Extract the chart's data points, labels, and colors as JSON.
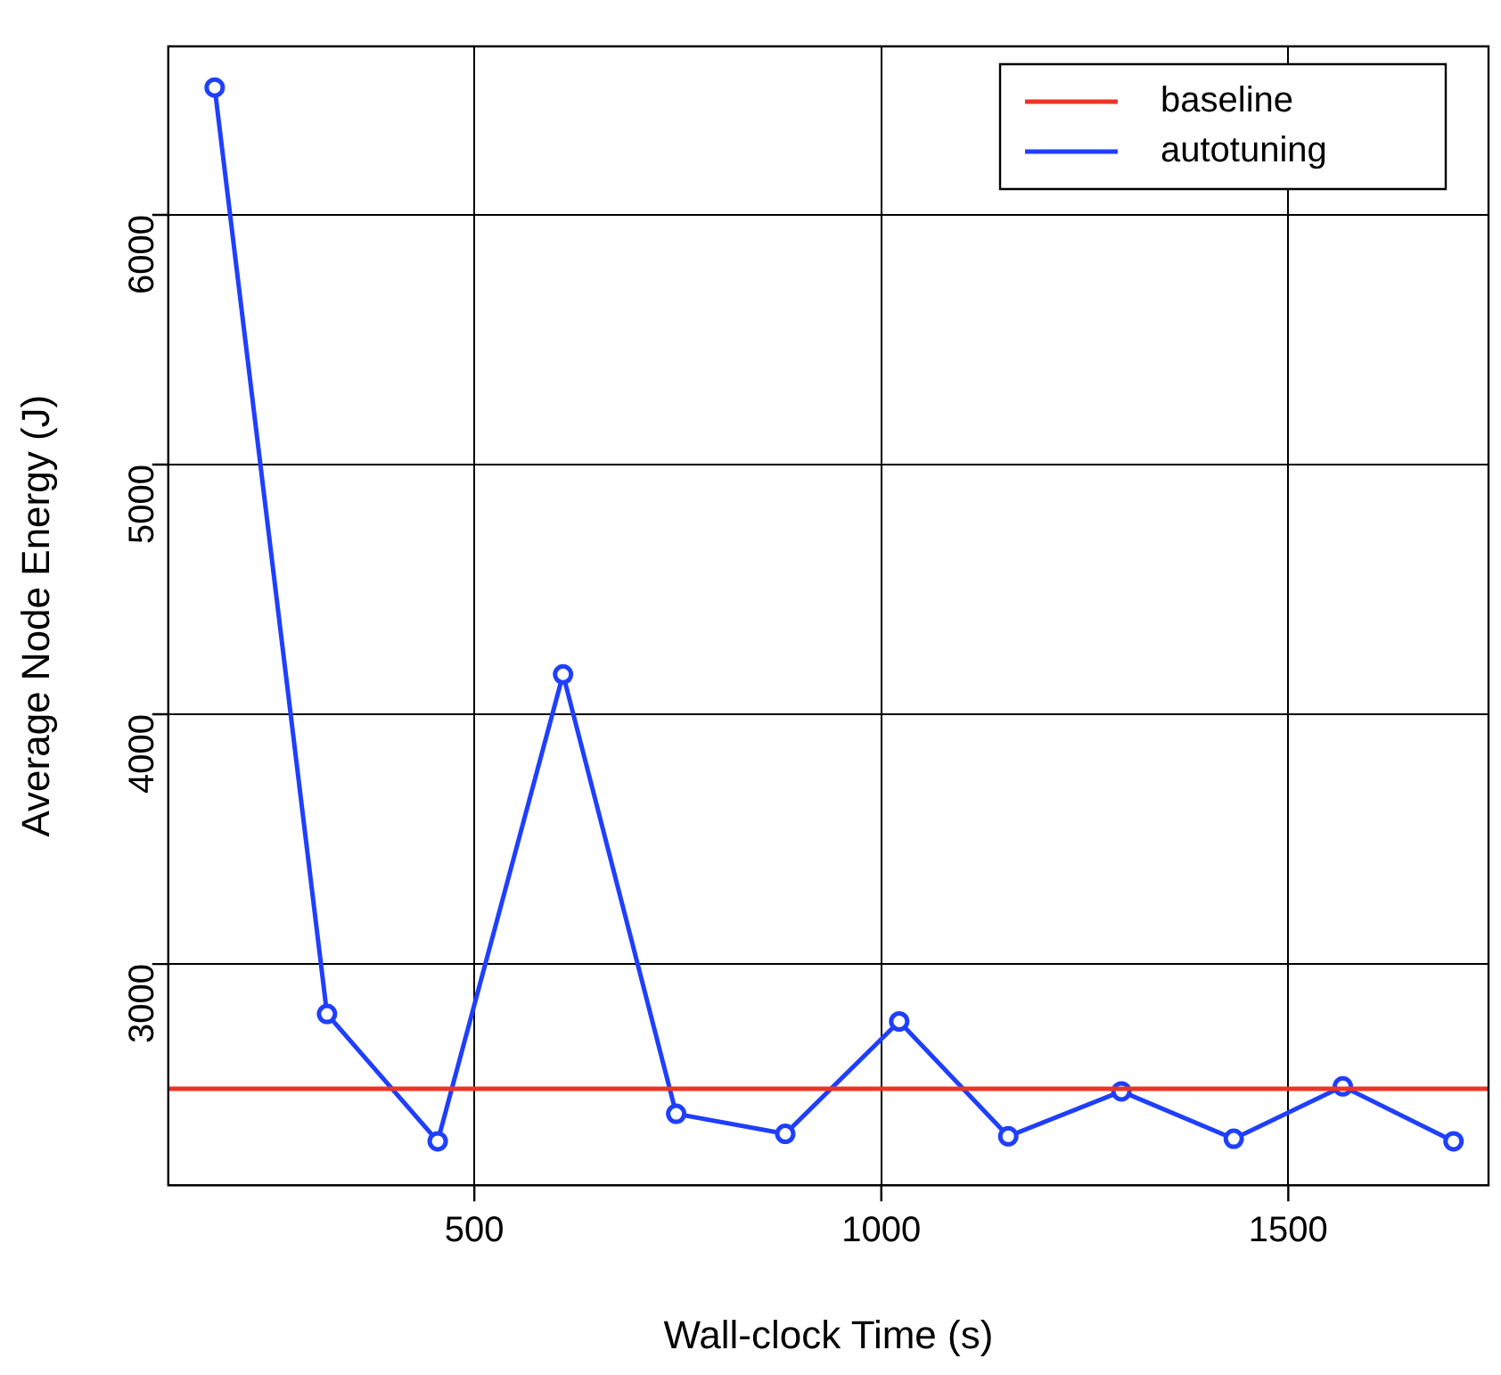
{
  "chart_data": {
    "type": "line",
    "xlabel": "Wall-clock Time (s)",
    "ylabel": "Average Node Energy (J)",
    "x": [
      181,
      319,
      455,
      609,
      748,
      882,
      1022,
      1156,
      1295,
      1433,
      1567,
      1703
    ],
    "series": [
      {
        "name": "autotuning",
        "color": "#1f3fff",
        "values": [
          6510,
          2800,
          2290,
          4160,
          2400,
          2320,
          2770,
          2310,
          2490,
          2300,
          2510,
          2290
        ]
      }
    ],
    "ref_lines": [
      {
        "axis": "y",
        "value": 2500,
        "label": "baseline",
        "color": "#ee3322"
      }
    ],
    "xlim": [
      124,
      1746
    ],
    "ylim": [
      2114,
      6675
    ],
    "xticks": [
      500,
      1000,
      1500
    ],
    "yticks": [
      3000,
      4000,
      5000,
      6000
    ],
    "grid": true,
    "legend": "top right",
    "marker": "circle",
    "line_style": "solid"
  }
}
